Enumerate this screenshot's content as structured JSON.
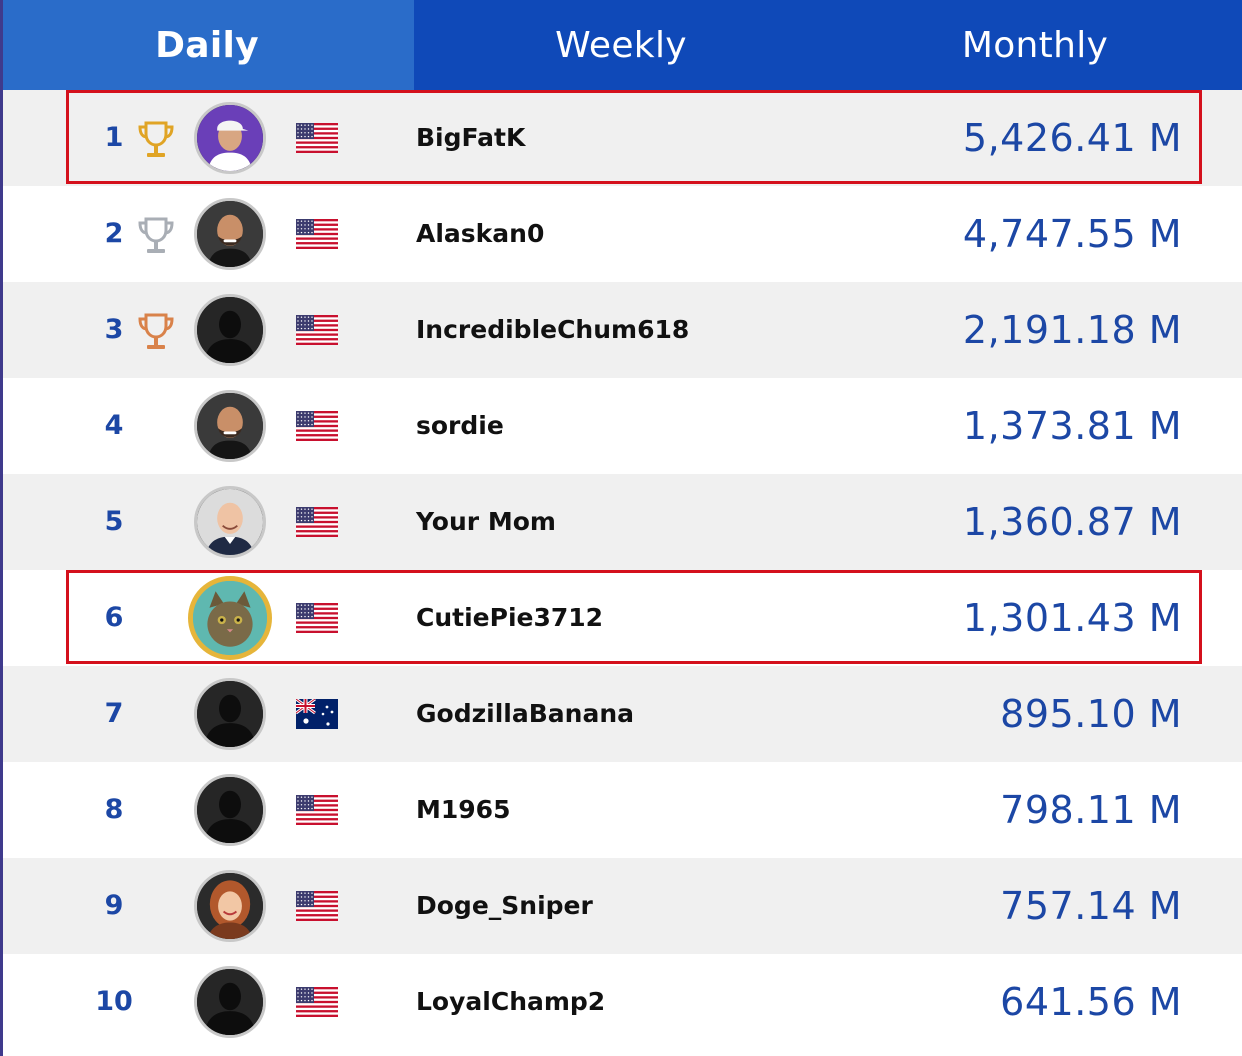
{
  "tabs": [
    {
      "label": "Daily",
      "active": true
    },
    {
      "label": "Weekly",
      "active": false
    },
    {
      "label": "Monthly",
      "active": false
    }
  ],
  "leaderboard": [
    {
      "rank": "1",
      "name": "BigFatK",
      "score": "5,426.41 M",
      "flag": "US",
      "trophy": "gold",
      "avatar": "man-white-cap",
      "highlighted": true
    },
    {
      "rank": "2",
      "name": "Alaskan0",
      "score": "4,747.55 M",
      "flag": "US",
      "trophy": "silver",
      "avatar": "bald-bearded-man",
      "highlighted": false
    },
    {
      "rank": "3",
      "name": "IncredibleChum618",
      "score": "2,191.18 M",
      "flag": "US",
      "trophy": "bronze",
      "avatar": "silhouette",
      "highlighted": false
    },
    {
      "rank": "4",
      "name": "sordie",
      "score": "1,373.81 M",
      "flag": "US",
      "trophy": "",
      "avatar": "bald-bearded-man",
      "highlighted": false
    },
    {
      "rank": "5",
      "name": "Your Mom",
      "score": "1,360.87 M",
      "flag": "US",
      "trophy": "",
      "avatar": "bald-smiling-man",
      "highlighted": false
    },
    {
      "rank": "6",
      "name": "CutiePie3712",
      "score": "1,301.43 M",
      "flag": "US",
      "trophy": "",
      "avatar": "cat-gold-frame",
      "highlighted": true
    },
    {
      "rank": "7",
      "name": "GodzillaBanana",
      "score": "895.10 M",
      "flag": "AU",
      "trophy": "",
      "avatar": "silhouette",
      "highlighted": false
    },
    {
      "rank": "8",
      "name": "M1965",
      "score": "798.11 M",
      "flag": "US",
      "trophy": "",
      "avatar": "silhouette",
      "highlighted": false
    },
    {
      "rank": "9",
      "name": "Doge_Sniper",
      "score": "757.14 M",
      "flag": "US",
      "trophy": "",
      "avatar": "smiling-woman",
      "highlighted": false
    },
    {
      "rank": "10",
      "name": "LoyalChamp2",
      "score": "641.56 M",
      "flag": "US",
      "trophy": "",
      "avatar": "silhouette",
      "highlighted": false
    }
  ],
  "colors": {
    "tab_bar": "#0f49b8",
    "tab_active": "#2a6cc9",
    "rank_and_score": "#1c47a5",
    "highlight_border": "#d4101c",
    "trophy_gold": "#e0a425",
    "trophy_silver": "#a9aeb5",
    "trophy_bronze": "#d9824a"
  }
}
